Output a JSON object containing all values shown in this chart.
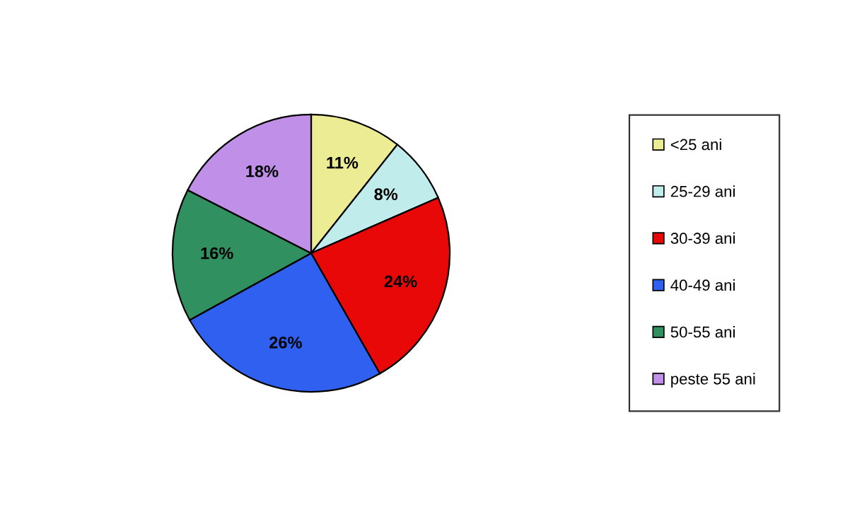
{
  "chart_data": {
    "type": "pie",
    "categories": [
      "<25 ani",
      "25-29 ani",
      "30-39 ani",
      "40-49 ani",
      "50-55 ani",
      "peste 55 ani"
    ],
    "values": [
      11,
      8,
      24,
      26,
      16,
      18
    ],
    "value_labels": [
      "11%",
      "8%",
      "24%",
      "26%",
      "16%",
      "18%"
    ],
    "colors": [
      "#ecec94",
      "#c0ecec",
      "#e80808",
      "#3060f0",
      "#309060",
      "#c090e8"
    ],
    "legend": "right"
  }
}
